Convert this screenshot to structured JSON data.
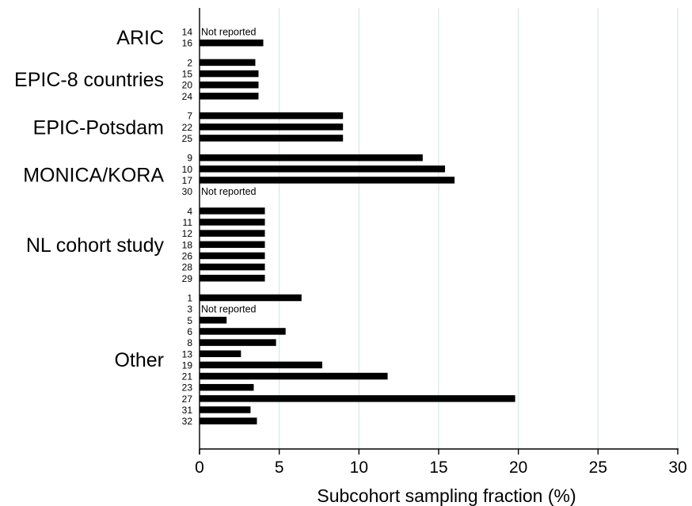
{
  "chart_data": {
    "type": "bar",
    "orientation": "horizontal",
    "xlabel": "Subcohort sampling fraction (%)",
    "xlim": [
      0,
      30
    ],
    "xticks": [
      0,
      5,
      10,
      15,
      20,
      25,
      30
    ],
    "grid": true,
    "groups": [
      {
        "name": "ARIC",
        "rows": [
          {
            "id": "14",
            "value": null,
            "note": "Not reported"
          },
          {
            "id": "16",
            "value": 4.0
          }
        ]
      },
      {
        "name": "EPIC-8 countries",
        "rows": [
          {
            "id": "2",
            "value": 3.5
          },
          {
            "id": "15",
            "value": 3.7
          },
          {
            "id": "20",
            "value": 3.7
          },
          {
            "id": "24",
            "value": 3.7
          }
        ]
      },
      {
        "name": "EPIC-Potsdam",
        "rows": [
          {
            "id": "7",
            "value": 9.0
          },
          {
            "id": "22",
            "value": 9.0
          },
          {
            "id": "25",
            "value": 9.0
          }
        ]
      },
      {
        "name": "MONICA/KORA",
        "rows": [
          {
            "id": "9",
            "value": 14.0
          },
          {
            "id": "10",
            "value": 15.4
          },
          {
            "id": "17",
            "value": 16.0
          },
          {
            "id": "30",
            "value": null,
            "note": "Not reported"
          }
        ]
      },
      {
        "name": "NL cohort study",
        "rows": [
          {
            "id": "4",
            "value": 4.1
          },
          {
            "id": "11",
            "value": 4.1
          },
          {
            "id": "12",
            "value": 4.1
          },
          {
            "id": "18",
            "value": 4.1
          },
          {
            "id": "26",
            "value": 4.1
          },
          {
            "id": "28",
            "value": 4.1
          },
          {
            "id": "29",
            "value": 4.1
          }
        ]
      },
      {
        "name": "Other",
        "rows": [
          {
            "id": "1",
            "value": 6.4
          },
          {
            "id": "3",
            "value": null,
            "note": "Not reported"
          },
          {
            "id": "5",
            "value": 1.7
          },
          {
            "id": "6",
            "value": 5.4
          },
          {
            "id": "8",
            "value": 4.8
          },
          {
            "id": "13",
            "value": 2.6
          },
          {
            "id": "19",
            "value": 7.7
          },
          {
            "id": "21",
            "value": 11.8
          },
          {
            "id": "23",
            "value": 3.4
          },
          {
            "id": "27",
            "value": 19.8
          },
          {
            "id": "31",
            "value": 3.2
          },
          {
            "id": "32",
            "value": 3.6
          }
        ]
      }
    ]
  },
  "colors": {
    "bar": "#000000",
    "grid": "#dce8e8",
    "axis": "#000000"
  }
}
